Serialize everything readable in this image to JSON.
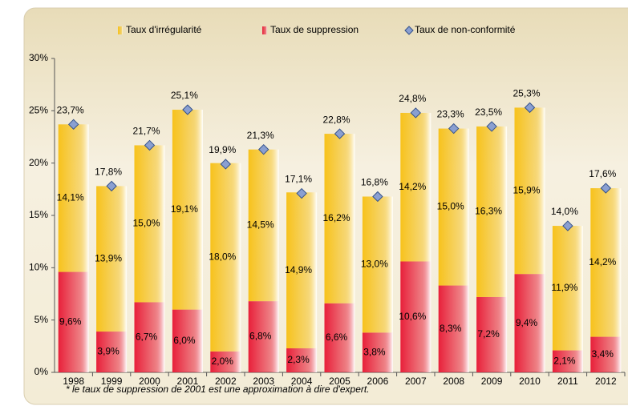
{
  "chart_data": {
    "type": "stacked_bar",
    "categories": [
      "1998",
      "1999",
      "2000",
      "2001",
      "2002",
      "2003",
      "2004",
      "2005",
      "2006",
      "2007",
      "2008",
      "2009",
      "2010",
      "2011",
      "2012"
    ],
    "series": [
      {
        "name": "Taux d'irrégularité",
        "kind": "bar",
        "color": "#f7c21c",
        "values": [
          14.1,
          13.9,
          15.0,
          19.1,
          18.0,
          14.5,
          14.9,
          16.2,
          13.0,
          14.2,
          15.0,
          16.3,
          15.9,
          11.9,
          14.2
        ],
        "value_labels": [
          "14,1%",
          "13,9%",
          "15,0%",
          "19,1%",
          "18,0%",
          "14,5%",
          "14,9%",
          "16,2%",
          "13,0%",
          "14,2%",
          "15,0%",
          "16,3%",
          "15,9%",
          "11,9%",
          "14,2%"
        ]
      },
      {
        "name": "Taux de suppression",
        "kind": "bar",
        "color": "#e8203a",
        "values": [
          9.6,
          3.9,
          6.7,
          6.0,
          2.0,
          6.8,
          2.3,
          6.6,
          3.8,
          10.6,
          8.3,
          7.2,
          9.4,
          2.1,
          3.4
        ],
        "value_labels": [
          "9,6%",
          "3,9%",
          "6,7%",
          "6,0%",
          "2,0%",
          "6,8%",
          "2,3%",
          "6,6%",
          "3,8%",
          "10,6%",
          "8,3%",
          "7,2%",
          "9,4%",
          "2,1%",
          "3,4%"
        ]
      },
      {
        "name": "Taux de non-conformité",
        "kind": "marker",
        "color": "#8a9fd1",
        "values": [
          23.7,
          17.8,
          21.7,
          25.1,
          19.9,
          21.3,
          17.1,
          22.8,
          16.8,
          24.8,
          23.3,
          23.5,
          25.3,
          14.0,
          17.6
        ],
        "value_labels": [
          "23,7%",
          "17,8%",
          "21,7%",
          "25,1%",
          "19,9%",
          "21,3%",
          "17,1%",
          "22,8%",
          "16,8%",
          "24,8%",
          "23,3%",
          "23,5%",
          "25,3%",
          "14,0%",
          "17,6%"
        ]
      }
    ],
    "ylim": [
      0,
      30
    ],
    "yticks": [
      {
        "value": 0,
        "label": "0%"
      },
      {
        "value": 5,
        "label": "5%"
      },
      {
        "value": 10,
        "label": "10%"
      },
      {
        "value": 15,
        "label": "15%"
      },
      {
        "value": 20,
        "label": "20%"
      },
      {
        "value": 25,
        "label": "25%"
      },
      {
        "value": 30,
        "label": "30%"
      }
    ],
    "note": "* le taux de suppression de 2001 est une approximation à dire d'expert.",
    "grid": false,
    "legend": "top"
  }
}
